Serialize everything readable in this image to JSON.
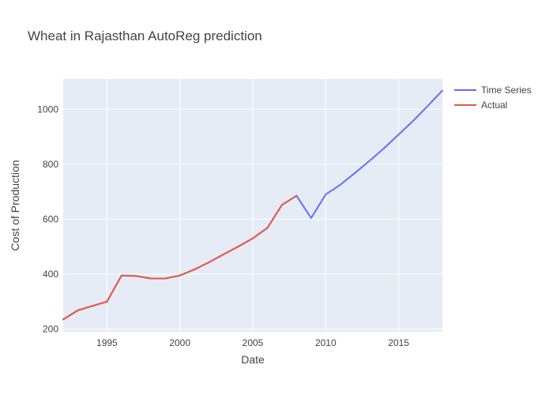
{
  "chart_data": {
    "type": "line",
    "title": "Wheat in Rajasthan AutoReg prediction",
    "xlabel": "Date",
    "ylabel": "Cost of Production",
    "xlim": [
      1992,
      2018
    ],
    "ylim": [
      190,
      1110
    ],
    "xticks": [
      1995,
      2000,
      2005,
      2010,
      2015
    ],
    "yticks": [
      200,
      400,
      600,
      800,
      1000
    ],
    "grid": true,
    "legend": "top-right",
    "series": [
      {
        "name": "Time Series",
        "color": "#636efa",
        "x": [
          1992,
          1993,
          1994,
          1995,
          1996,
          1997,
          1998,
          1999,
          2000,
          2001,
          2002,
          2003,
          2004,
          2005,
          2006,
          2007,
          2008,
          2009,
          2010,
          2011,
          2012,
          2013,
          2014,
          2015,
          2016,
          2017,
          2018
        ],
        "y": [
          235,
          268,
          284,
          300,
          395,
          393,
          384,
          384,
          395,
          417,
          443,
          472,
          500,
          530,
          568,
          652,
          685,
          604,
          690,
          725,
          768,
          812,
          858,
          908,
          958,
          1012,
          1068
        ]
      },
      {
        "name": "Actual",
        "color": "#ef553b",
        "x": [
          1992,
          1993,
          1994,
          1995,
          1996,
          1997,
          1998,
          1999,
          2000,
          2001,
          2002,
          2003,
          2004,
          2005,
          2006,
          2007,
          2008
        ],
        "y": [
          235,
          268,
          284,
          300,
          395,
          393,
          384,
          384,
          395,
          417,
          443,
          472,
          500,
          530,
          568,
          652,
          685
        ]
      }
    ]
  }
}
